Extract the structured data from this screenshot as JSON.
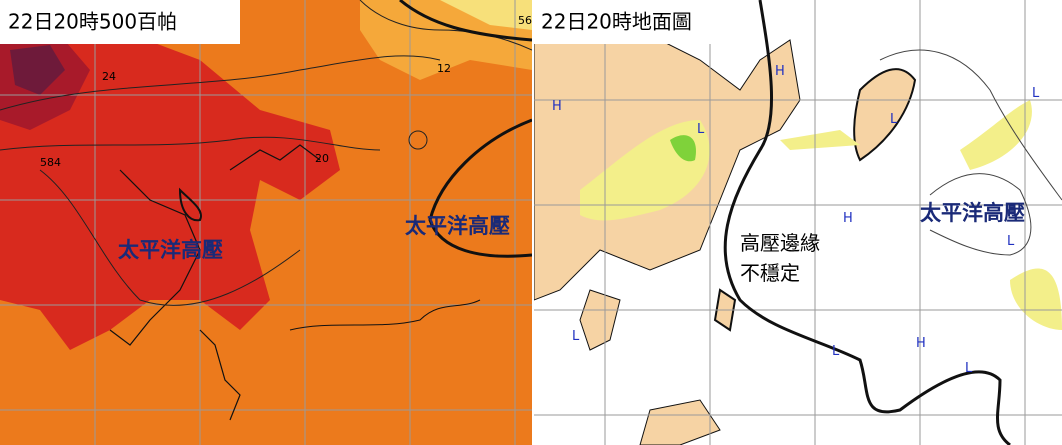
{
  "panels": [
    {
      "title": "22日20時500百帕",
      "annotation": "太平洋高壓",
      "contour_labels": [
        584,
        24,
        20,
        12,
        56
      ]
    },
    {
      "title": "22日20時地面圖",
      "annotations": [
        "太平洋高壓",
        "高壓邊緣",
        "不穩定"
      ],
      "pressure_centers": [
        "H",
        "L",
        "H",
        "L",
        "L",
        "H",
        "L",
        "L",
        "L",
        "H",
        "L"
      ]
    }
  ]
}
